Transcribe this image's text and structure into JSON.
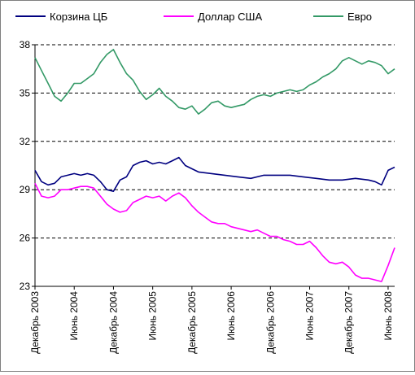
{
  "chart_data": {
    "type": "line",
    "title": "",
    "xlabel": "",
    "ylabel": "",
    "ylim": [
      23,
      38
    ],
    "yticks": [
      23,
      26,
      29,
      32,
      35,
      38
    ],
    "xlim": [
      "2003-12",
      "2008-07"
    ],
    "xticks": [
      {
        "date": "2003-12",
        "label": "Декабрь 2003"
      },
      {
        "date": "2004-06",
        "label": "Июнь 2004"
      },
      {
        "date": "2004-12",
        "label": "Декабрь 2004"
      },
      {
        "date": "2005-06",
        "label": "Июнь 2005"
      },
      {
        "date": "2005-12",
        "label": "Декабрь 2005"
      },
      {
        "date": "2006-06",
        "label": "Июнь 2006"
      },
      {
        "date": "2006-12",
        "label": "Декабрь 2006"
      },
      {
        "date": "2007-06",
        "label": "Июнь 2007"
      },
      {
        "date": "2007-12",
        "label": "Декабрь 2007"
      },
      {
        "date": "2008-06",
        "label": "Июнь 2008"
      }
    ],
    "grid": "horizontal dashed",
    "legend": "top",
    "series": [
      {
        "name": "Корзина ЦБ",
        "color": "#000080",
        "points": [
          [
            "2003-12",
            30.2
          ],
          [
            "2004-01",
            29.5
          ],
          [
            "2004-02",
            29.3
          ],
          [
            "2004-03",
            29.4
          ],
          [
            "2004-04",
            29.8
          ],
          [
            "2004-05",
            29.9
          ],
          [
            "2004-06",
            30.0
          ],
          [
            "2004-07",
            29.9
          ],
          [
            "2004-08",
            30.0
          ],
          [
            "2004-09",
            29.9
          ],
          [
            "2004-10",
            29.5
          ],
          [
            "2004-11",
            29.0
          ],
          [
            "2004-12",
            28.9
          ],
          [
            "2005-01",
            29.6
          ],
          [
            "2005-02",
            29.8
          ],
          [
            "2005-03",
            30.5
          ],
          [
            "2005-04",
            30.7
          ],
          [
            "2005-05",
            30.8
          ],
          [
            "2005-06",
            30.6
          ],
          [
            "2005-07",
            30.7
          ],
          [
            "2005-08",
            30.6
          ],
          [
            "2005-09",
            30.8
          ],
          [
            "2005-10",
            31.0
          ],
          [
            "2005-11",
            30.5
          ],
          [
            "2005-12",
            30.3
          ],
          [
            "2006-01",
            30.1
          ],
          [
            "2006-03",
            30.0
          ],
          [
            "2006-05",
            29.9
          ],
          [
            "2006-07",
            29.8
          ],
          [
            "2006-09",
            29.7
          ],
          [
            "2006-11",
            29.9
          ],
          [
            "2007-01",
            29.9
          ],
          [
            "2007-03",
            29.9
          ],
          [
            "2007-05",
            29.8
          ],
          [
            "2007-07",
            29.7
          ],
          [
            "2007-09",
            29.6
          ],
          [
            "2007-11",
            29.6
          ],
          [
            "2008-01",
            29.7
          ],
          [
            "2008-03",
            29.6
          ],
          [
            "2008-04",
            29.5
          ],
          [
            "2008-05",
            29.3
          ],
          [
            "2008-06",
            30.2
          ],
          [
            "2008-07",
            30.4
          ]
        ]
      },
      {
        "name": "Доллар США",
        "color": "#ff00ff",
        "points": [
          [
            "2003-12",
            29.4
          ],
          [
            "2004-01",
            28.6
          ],
          [
            "2004-02",
            28.5
          ],
          [
            "2004-03",
            28.6
          ],
          [
            "2004-04",
            29.0
          ],
          [
            "2004-05",
            29.0
          ],
          [
            "2004-06",
            29.1
          ],
          [
            "2004-07",
            29.2
          ],
          [
            "2004-08",
            29.2
          ],
          [
            "2004-09",
            29.1
          ],
          [
            "2004-10",
            28.6
          ],
          [
            "2004-11",
            28.1
          ],
          [
            "2004-12",
            27.8
          ],
          [
            "2005-01",
            27.6
          ],
          [
            "2005-02",
            27.7
          ],
          [
            "2005-03",
            28.2
          ],
          [
            "2005-04",
            28.4
          ],
          [
            "2005-05",
            28.6
          ],
          [
            "2005-06",
            28.5
          ],
          [
            "2005-07",
            28.6
          ],
          [
            "2005-08",
            28.3
          ],
          [
            "2005-09",
            28.6
          ],
          [
            "2005-10",
            28.8
          ],
          [
            "2005-11",
            28.5
          ],
          [
            "2005-12",
            28.0
          ],
          [
            "2006-01",
            27.6
          ],
          [
            "2006-02",
            27.3
          ],
          [
            "2006-03",
            27.0
          ],
          [
            "2006-04",
            26.9
          ],
          [
            "2006-05",
            26.9
          ],
          [
            "2006-06",
            26.7
          ],
          [
            "2006-07",
            26.6
          ],
          [
            "2006-08",
            26.5
          ],
          [
            "2006-09",
            26.4
          ],
          [
            "2006-10",
            26.5
          ],
          [
            "2006-11",
            26.3
          ],
          [
            "2006-12",
            26.1
          ],
          [
            "2007-01",
            26.1
          ],
          [
            "2007-02",
            25.9
          ],
          [
            "2007-03",
            25.8
          ],
          [
            "2007-04",
            25.6
          ],
          [
            "2007-05",
            25.6
          ],
          [
            "2007-06",
            25.8
          ],
          [
            "2007-07",
            25.4
          ],
          [
            "2007-08",
            24.9
          ],
          [
            "2007-09",
            24.5
          ],
          [
            "2007-10",
            24.4
          ],
          [
            "2007-11",
            24.5
          ],
          [
            "2007-12",
            24.2
          ],
          [
            "2008-01",
            23.7
          ],
          [
            "2008-02",
            23.5
          ],
          [
            "2008-03",
            23.5
          ],
          [
            "2008-04",
            23.4
          ],
          [
            "2008-05",
            23.3
          ],
          [
            "2008-06",
            24.3
          ],
          [
            "2008-07",
            25.4
          ]
        ]
      },
      {
        "name": "Евро",
        "color": "#339966",
        "points": [
          [
            "2003-12",
            37.2
          ],
          [
            "2004-01",
            36.4
          ],
          [
            "2004-02",
            35.6
          ],
          [
            "2004-03",
            34.8
          ],
          [
            "2004-04",
            34.5
          ],
          [
            "2004-05",
            35.0
          ],
          [
            "2004-06",
            35.6
          ],
          [
            "2004-07",
            35.6
          ],
          [
            "2004-08",
            35.9
          ],
          [
            "2004-09",
            36.2
          ],
          [
            "2004-10",
            36.9
          ],
          [
            "2004-11",
            37.4
          ],
          [
            "2004-12",
            37.7
          ],
          [
            "2005-01",
            36.9
          ],
          [
            "2005-02",
            36.2
          ],
          [
            "2005-03",
            35.8
          ],
          [
            "2005-04",
            35.1
          ],
          [
            "2005-05",
            34.6
          ],
          [
            "2005-06",
            34.9
          ],
          [
            "2005-07",
            35.3
          ],
          [
            "2005-08",
            34.8
          ],
          [
            "2005-09",
            34.5
          ],
          [
            "2005-10",
            34.1
          ],
          [
            "2005-11",
            34.0
          ],
          [
            "2005-12",
            34.2
          ],
          [
            "2006-01",
            33.7
          ],
          [
            "2006-02",
            34.0
          ],
          [
            "2006-03",
            34.4
          ],
          [
            "2006-04",
            34.5
          ],
          [
            "2006-05",
            34.2
          ],
          [
            "2006-06",
            34.1
          ],
          [
            "2006-07",
            34.2
          ],
          [
            "2006-08",
            34.3
          ],
          [
            "2006-09",
            34.6
          ],
          [
            "2006-10",
            34.8
          ],
          [
            "2006-11",
            34.9
          ],
          [
            "2006-12",
            34.8
          ],
          [
            "2007-01",
            35.0
          ],
          [
            "2007-02",
            35.1
          ],
          [
            "2007-03",
            35.2
          ],
          [
            "2007-04",
            35.1
          ],
          [
            "2007-05",
            35.2
          ],
          [
            "2007-06",
            35.5
          ],
          [
            "2007-07",
            35.7
          ],
          [
            "2007-08",
            36.0
          ],
          [
            "2007-09",
            36.2
          ],
          [
            "2007-10",
            36.5
          ],
          [
            "2007-11",
            37.0
          ],
          [
            "2007-12",
            37.2
          ],
          [
            "2008-01",
            37.0
          ],
          [
            "2008-02",
            36.8
          ],
          [
            "2008-03",
            37.0
          ],
          [
            "2008-04",
            36.9
          ],
          [
            "2008-05",
            36.7
          ],
          [
            "2008-06",
            36.2
          ],
          [
            "2008-07",
            36.5
          ]
        ]
      }
    ]
  }
}
